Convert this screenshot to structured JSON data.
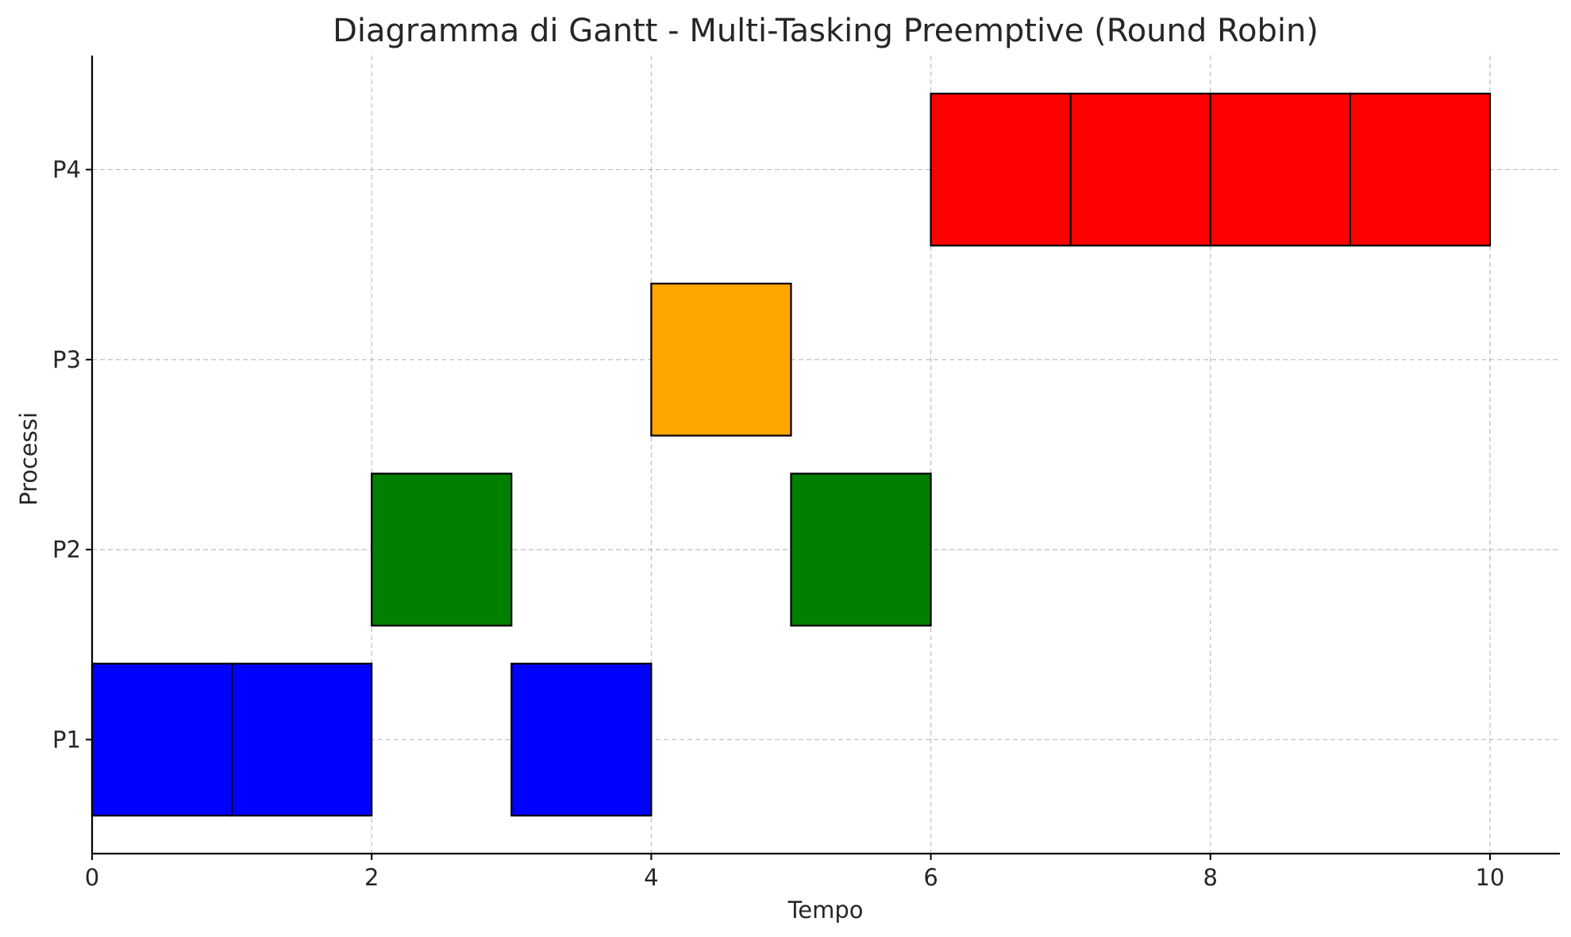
{
  "chart_data": {
    "type": "gantt",
    "title": "Diagramma di Gantt - Multi-Tasking Preemptive (Round Robin)",
    "xlabel": "Tempo",
    "ylabel": "Processi",
    "xlim": [
      0,
      10.5
    ],
    "xticks": [
      0,
      2,
      4,
      6,
      8,
      10
    ],
    "categories": [
      "P1",
      "P2",
      "P3",
      "P4"
    ],
    "grid": true,
    "colors": {
      "P1": "#0000ff",
      "P2": "#008000",
      "P3": "#ffa500",
      "P4": "#ff0000"
    },
    "segments": [
      {
        "process": "P1",
        "start": 0,
        "end": 1
      },
      {
        "process": "P1",
        "start": 1,
        "end": 2
      },
      {
        "process": "P2",
        "start": 2,
        "end": 3
      },
      {
        "process": "P1",
        "start": 3,
        "end": 4
      },
      {
        "process": "P3",
        "start": 4,
        "end": 5
      },
      {
        "process": "P2",
        "start": 5,
        "end": 6
      },
      {
        "process": "P4",
        "start": 6,
        "end": 7
      },
      {
        "process": "P4",
        "start": 7,
        "end": 8
      },
      {
        "process": "P4",
        "start": 8,
        "end": 9
      },
      {
        "process": "P4",
        "start": 9,
        "end": 10
      }
    ]
  }
}
